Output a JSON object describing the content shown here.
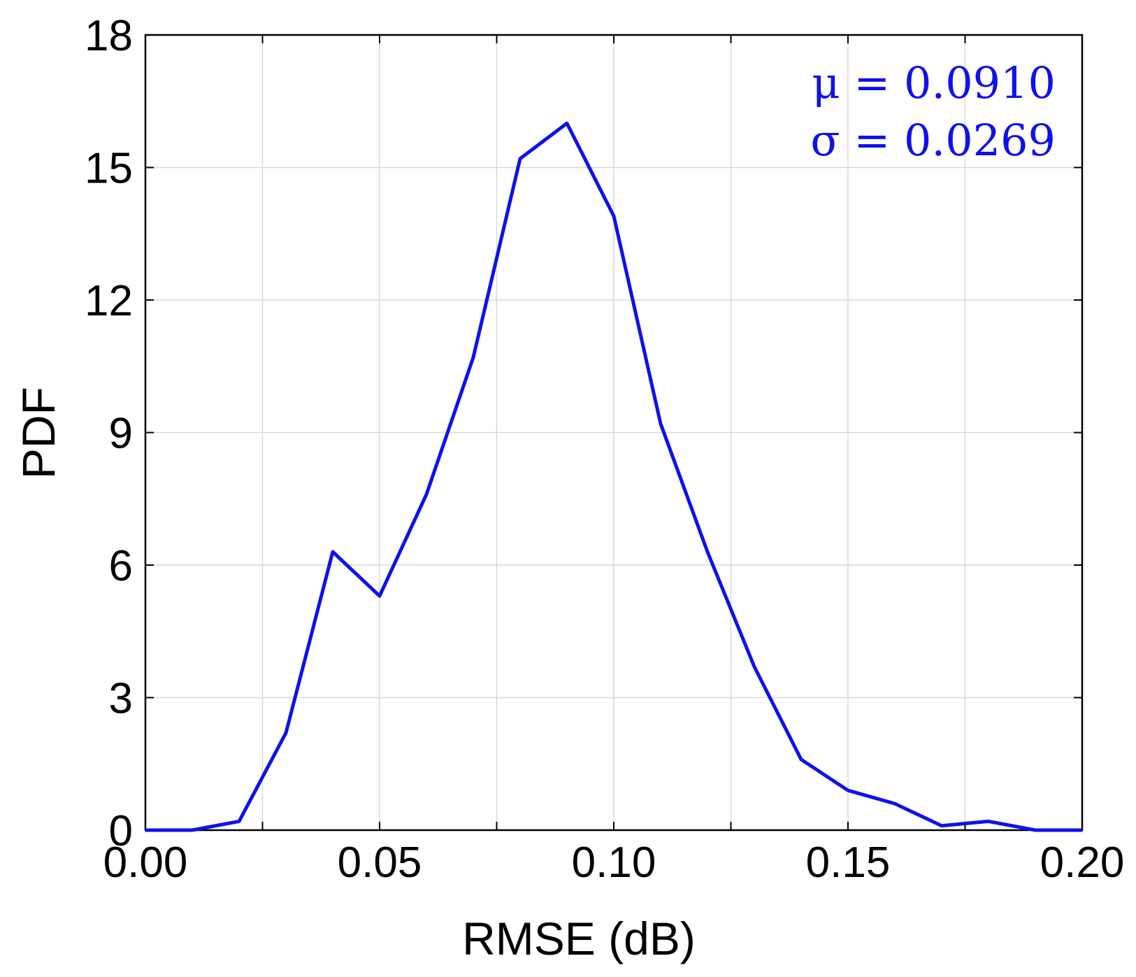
{
  "chart_data": {
    "type": "line",
    "xlabel": "RMSE (dB)",
    "ylabel": "PDF",
    "xlim": [
      0,
      0.2
    ],
    "ylim": [
      0,
      18
    ],
    "x_ticks": [
      "0.00",
      "0.05",
      "0.10",
      "0.15",
      "0.20"
    ],
    "x_tick_values": [
      0,
      0.05,
      0.1,
      0.15,
      0.2
    ],
    "y_ticks": [
      "0",
      "3",
      "6",
      "9",
      "12",
      "15",
      "18"
    ],
    "y_tick_values": [
      0,
      3,
      6,
      9,
      12,
      15,
      18
    ],
    "grid": true,
    "color": "#1010ee",
    "series": [
      {
        "x": [
          0.0,
          0.01,
          0.02,
          0.03,
          0.04,
          0.05,
          0.06,
          0.07,
          0.08,
          0.09,
          0.1,
          0.11,
          0.12,
          0.13,
          0.14,
          0.15,
          0.16,
          0.17,
          0.18,
          0.19,
          0.2
        ],
        "values": [
          0.0,
          0.0,
          0.2,
          2.2,
          6.3,
          5.3,
          7.6,
          10.7,
          15.2,
          16.0,
          13.9,
          9.2,
          6.3,
          3.7,
          1.6,
          0.9,
          0.6,
          0.1,
          0.2,
          0.0,
          0.0
        ]
      }
    ],
    "annotations": [
      {
        "text": "μ = 0.0910"
      },
      {
        "text": "σ = 0.0269"
      }
    ]
  }
}
